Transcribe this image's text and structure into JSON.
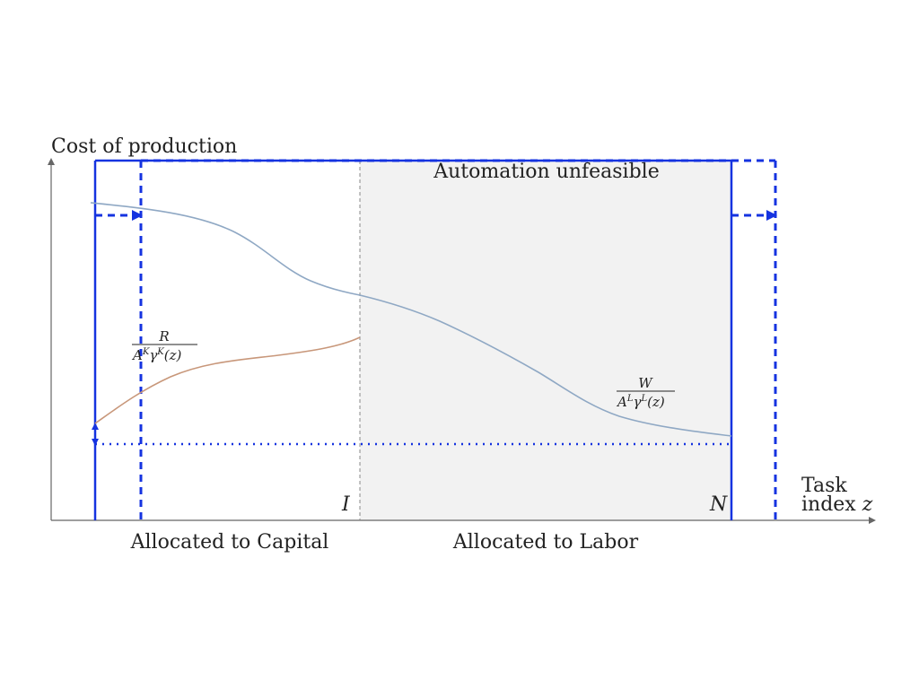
{
  "labels": {
    "y_axis": "Cost of production",
    "x_axis_line1": "Task",
    "x_axis_line2": "index",
    "x_axis_var": "z",
    "automation_region": "Automation unfeasible",
    "capital_region": "Allocated to Capital",
    "labor_region": "Allocated to Labor",
    "threshold_I": "I",
    "threshold_N": "N"
  },
  "formulas": {
    "capital_cost": {
      "numerator": "R",
      "den_base1": "A",
      "den_sup1": "K",
      "den_base2": "γ",
      "den_sup2": "K",
      "den_arg": "(z)"
    },
    "labor_cost": {
      "numerator": "W",
      "den_base1": "A",
      "den_sup1": "L",
      "den_base2": "γ",
      "den_sup2": "L",
      "den_arg": "(z)"
    }
  },
  "colors": {
    "labor_curve": "#8fa8c4",
    "capital_curve": "#c8977a",
    "shift_lines": "#1533e0",
    "axis": "#666666",
    "shaded_region": "#f2f2f2",
    "divider": "#888888"
  }
}
